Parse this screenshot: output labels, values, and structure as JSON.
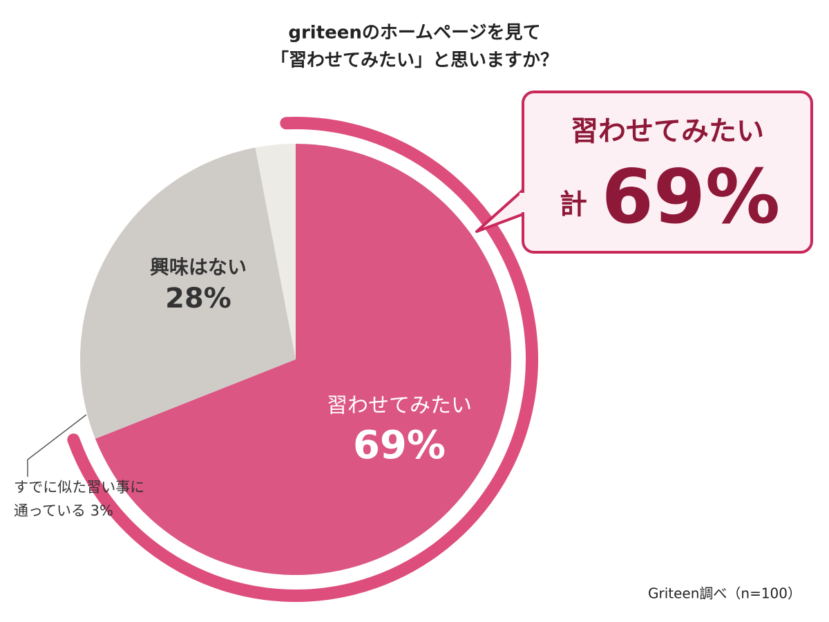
{
  "chart_data": {
    "type": "pie",
    "title": [
      "griteenのホームページを見て",
      "「習わせてみたい」と思いますか？"
    ],
    "categories": [
      "習わせてみたい",
      "興味はない",
      "すでに似た習い事に通っている"
    ],
    "values": [
      69,
      28,
      3
    ],
    "value_labels": [
      "69%",
      "28%",
      "3%"
    ],
    "colors": [
      "#dc5683",
      "#cfccc8",
      "#ecebe5"
    ],
    "callout": {
      "title": "習わせてみたい",
      "prefix": "計",
      "value_label": "69%"
    },
    "source": "Griteen調べ（n=100）"
  }
}
